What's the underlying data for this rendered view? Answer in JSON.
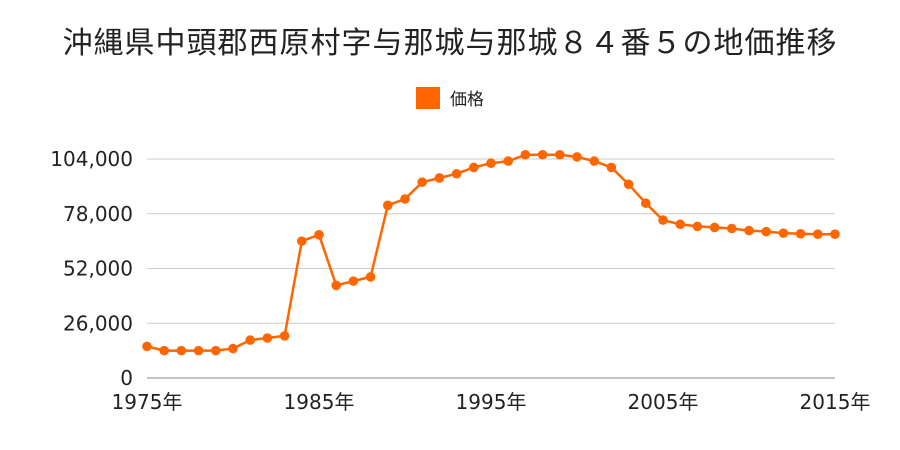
{
  "chart_data": {
    "type": "line",
    "title": "沖縄県中頭郡西原村字与那城与那城８４番５の地価推移",
    "legend": {
      "label": "価格",
      "placement": "top-center"
    },
    "colors": {
      "series": "#ff6600",
      "grid": "#cccccc",
      "axis": "#888888"
    },
    "grid": true,
    "ylim": [
      0,
      104000
    ],
    "y_ticks": [
      0,
      26000,
      52000,
      78000,
      104000
    ],
    "y_tick_labels": [
      "0",
      "26,000",
      "52,000",
      "78,000",
      "104,000"
    ],
    "xlim": [
      1975,
      2015
    ],
    "x_tick_labels": [
      "1975年",
      "1985年",
      "1995年",
      "2005年",
      "2015年"
    ],
    "series": [
      {
        "name": "価格",
        "x": [
          1975,
          1976,
          1977,
          1978,
          1979,
          1980,
          1981,
          1982,
          1983,
          1984,
          1985,
          1986,
          1987,
          1988,
          1989,
          1990,
          1991,
          1992,
          1993,
          1994,
          1995,
          1996,
          1997,
          1998,
          1999,
          2000,
          2001,
          2002,
          2003,
          2004,
          2005,
          2006,
          2007,
          2008,
          2009,
          2010,
          2011,
          2012,
          2013,
          2014,
          2015
        ],
        "values": [
          15000,
          13000,
          13000,
          13000,
          13000,
          14000,
          18000,
          19000,
          20000,
          65000,
          68000,
          44000,
          46000,
          48000,
          82000,
          85000,
          93000,
          95000,
          97000,
          100000,
          102000,
          103000,
          106000,
          106000,
          106000,
          105000,
          103000,
          100000,
          92000,
          83000,
          75000,
          73000,
          72000,
          71500,
          71000,
          70000,
          69500,
          68800,
          68500,
          68300,
          68300
        ]
      }
    ]
  }
}
